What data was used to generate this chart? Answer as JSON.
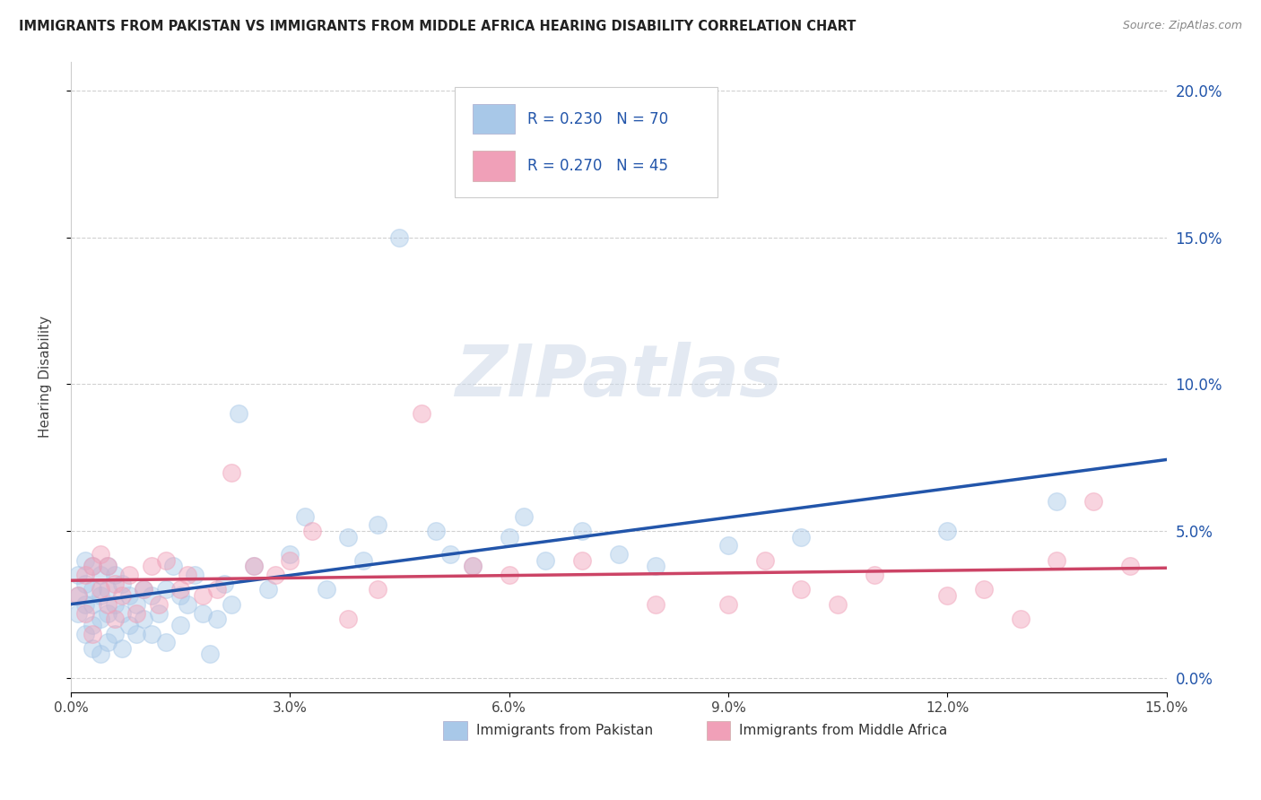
{
  "title": "IMMIGRANTS FROM PAKISTAN VS IMMIGRANTS FROM MIDDLE AFRICA HEARING DISABILITY CORRELATION CHART",
  "source": "Source: ZipAtlas.com",
  "ylabel": "Hearing Disability",
  "xlim": [
    0,
    0.15
  ],
  "ylim": [
    -0.005,
    0.21
  ],
  "xticks": [
    0.0,
    0.03,
    0.06,
    0.09,
    0.12,
    0.15
  ],
  "xtick_labels": [
    "0.0%",
    "3.0%",
    "6.0%",
    "9.0%",
    "12.0%",
    "15.0%"
  ],
  "ytick_positions": [
    0.0,
    0.05,
    0.1,
    0.15,
    0.2
  ],
  "ytick_labels": [
    "0.0%",
    "5.0%",
    "10.0%",
    "15.0%",
    "20.0%"
  ],
  "series1_name": "Immigrants from Pakistan",
  "series1_color": "#a8c8e8",
  "series1_line_color": "#2255aa",
  "series1_R": 0.23,
  "series1_N": 70,
  "series2_name": "Immigrants from Middle Africa",
  "series2_color": "#f0a0b8",
  "series2_line_color": "#cc4466",
  "series2_R": 0.27,
  "series2_N": 45,
  "watermark": "ZIPatlas",
  "pakistan_x": [
    0.001,
    0.001,
    0.001,
    0.002,
    0.002,
    0.002,
    0.002,
    0.003,
    0.003,
    0.003,
    0.003,
    0.003,
    0.004,
    0.004,
    0.004,
    0.004,
    0.005,
    0.005,
    0.005,
    0.005,
    0.006,
    0.006,
    0.006,
    0.007,
    0.007,
    0.007,
    0.008,
    0.008,
    0.009,
    0.009,
    0.01,
    0.01,
    0.011,
    0.011,
    0.012,
    0.013,
    0.013,
    0.014,
    0.015,
    0.015,
    0.016,
    0.017,
    0.018,
    0.019,
    0.02,
    0.021,
    0.022,
    0.023,
    0.025,
    0.027,
    0.03,
    0.032,
    0.035,
    0.038,
    0.04,
    0.042,
    0.045,
    0.05,
    0.052,
    0.055,
    0.06,
    0.062,
    0.065,
    0.07,
    0.075,
    0.08,
    0.09,
    0.1,
    0.12,
    0.135
  ],
  "pakistan_y": [
    0.022,
    0.028,
    0.035,
    0.015,
    0.025,
    0.032,
    0.04,
    0.01,
    0.018,
    0.025,
    0.03,
    0.038,
    0.008,
    0.02,
    0.028,
    0.035,
    0.012,
    0.022,
    0.03,
    0.038,
    0.015,
    0.025,
    0.035,
    0.01,
    0.022,
    0.032,
    0.018,
    0.028,
    0.015,
    0.025,
    0.02,
    0.03,
    0.015,
    0.028,
    0.022,
    0.012,
    0.03,
    0.038,
    0.018,
    0.028,
    0.025,
    0.035,
    0.022,
    0.008,
    0.02,
    0.032,
    0.025,
    0.09,
    0.038,
    0.03,
    0.042,
    0.055,
    0.03,
    0.048,
    0.04,
    0.052,
    0.15,
    0.05,
    0.042,
    0.038,
    0.048,
    0.055,
    0.04,
    0.05,
    0.042,
    0.038,
    0.045,
    0.048,
    0.05,
    0.06
  ],
  "middle_africa_x": [
    0.001,
    0.002,
    0.002,
    0.003,
    0.003,
    0.004,
    0.004,
    0.005,
    0.005,
    0.006,
    0.006,
    0.007,
    0.008,
    0.009,
    0.01,
    0.011,
    0.012,
    0.013,
    0.015,
    0.016,
    0.018,
    0.02,
    0.022,
    0.025,
    0.028,
    0.03,
    0.033,
    0.038,
    0.042,
    0.048,
    0.055,
    0.06,
    0.07,
    0.08,
    0.09,
    0.095,
    0.1,
    0.105,
    0.11,
    0.12,
    0.125,
    0.13,
    0.135,
    0.14,
    0.145
  ],
  "middle_africa_y": [
    0.028,
    0.035,
    0.022,
    0.038,
    0.015,
    0.03,
    0.042,
    0.025,
    0.038,
    0.02,
    0.032,
    0.028,
    0.035,
    0.022,
    0.03,
    0.038,
    0.025,
    0.04,
    0.03,
    0.035,
    0.028,
    0.03,
    0.07,
    0.038,
    0.035,
    0.04,
    0.05,
    0.02,
    0.03,
    0.09,
    0.038,
    0.035,
    0.04,
    0.025,
    0.025,
    0.04,
    0.03,
    0.025,
    0.035,
    0.028,
    0.03,
    0.02,
    0.04,
    0.06,
    0.038
  ]
}
